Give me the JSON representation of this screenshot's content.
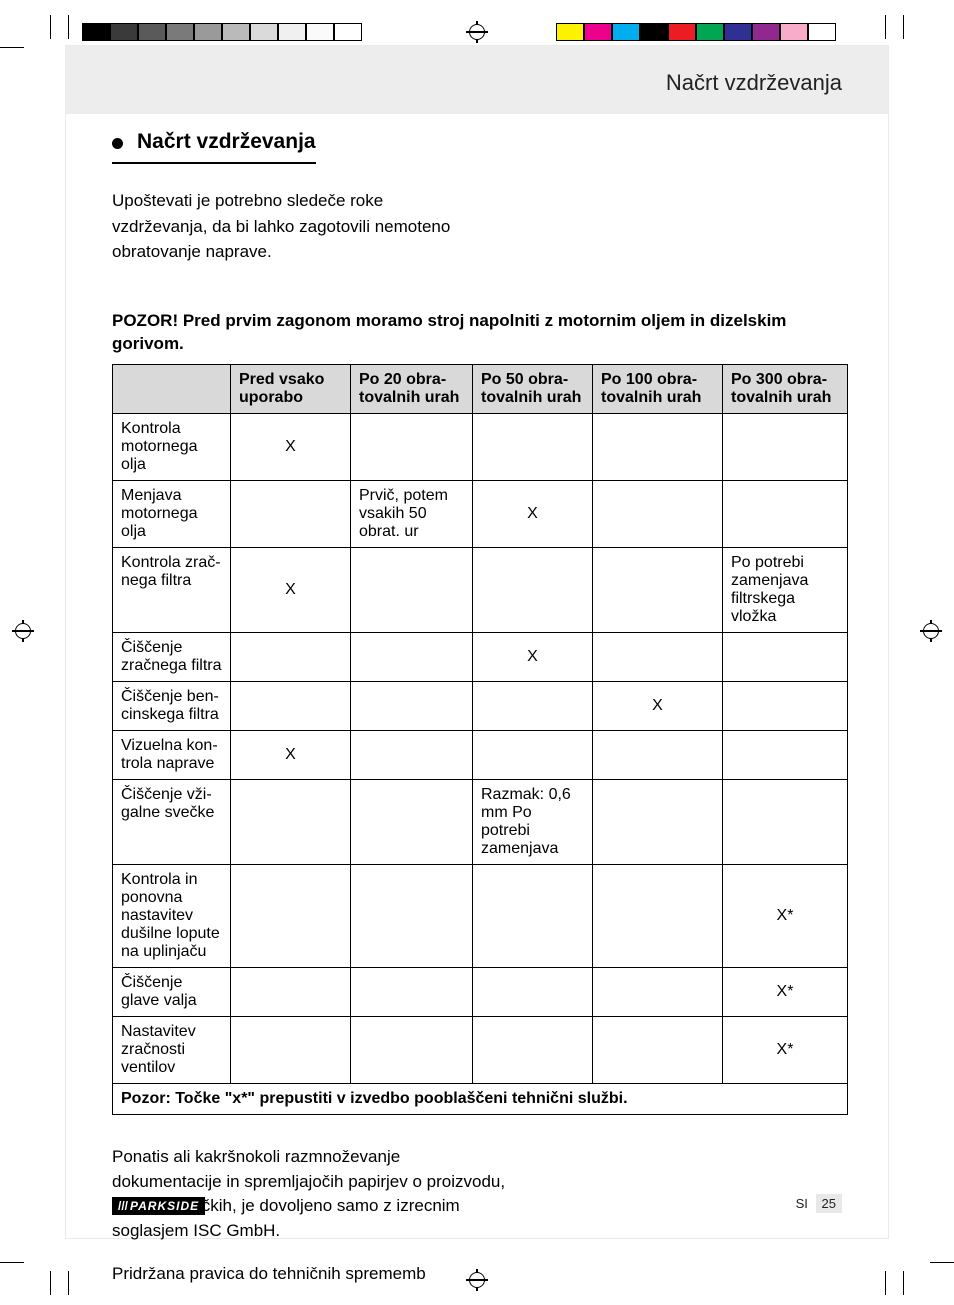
{
  "colors": {
    "header_band": "#ededed",
    "table_header": "#d9d9d9",
    "text": "#000000",
    "page_bg": "#ffffff"
  },
  "print_color_bar_left": [
    "#000000",
    "#3a3a3a",
    "#5a5a5a",
    "#7a7a7a",
    "#9a9a9a",
    "#bababa",
    "#dadada",
    "#f0f0f0",
    "#fafafa",
    "#ffffff"
  ],
  "print_color_bar_right": [
    "#fff200",
    "#ec008c",
    "#00aeef",
    "#000000",
    "#ed1c24",
    "#00a651",
    "#2e3192",
    "#92278f",
    "#f7adc9",
    "#ffffff"
  ],
  "header": {
    "title": "Načrt vzdrževanja"
  },
  "section": {
    "title": "Načrt vzdrževanja",
    "intro": "Upoštevati je potrebno sledeče roke vzdrževanja, da bi lahko zagotovili nemoteno obratovanje naprave.",
    "caution": "POZOR! Pred prvim zagonom moramo stroj napolniti z motornim oljem in dizelskim gorivom."
  },
  "table": {
    "columns": [
      "",
      "Pred vsako uporabo",
      "Po 20 obra­tovalnih urah",
      "Po 50 obra­tovalnih urah",
      "Po 100 obra­tovalnih urah",
      "Po 300 obra­tovalnih urah"
    ],
    "rows": [
      {
        "label": "Kontrola motornega olja",
        "cells": [
          "X",
          "",
          "",
          "",
          ""
        ]
      },
      {
        "label": "Menjava motornega olja",
        "cells": [
          "",
          "Prvič, potem vsakih 50 obrat. ur",
          "X",
          "",
          ""
        ]
      },
      {
        "label": "Kontrola zrač­nega filtra",
        "cells": [
          "X",
          "",
          "",
          "",
          "Po potrebi zamenjava filtrskega vložka"
        ]
      },
      {
        "label": "Čiščenje zrač­nega filtra",
        "cells": [
          "",
          "",
          "X",
          "",
          ""
        ]
      },
      {
        "label": "Čiščenje ben­cinskega filtra",
        "cells": [
          "",
          "",
          "",
          "X",
          ""
        ]
      },
      {
        "label": "Vizuelna kon­trola naprave",
        "cells": [
          "X",
          "",
          "",
          "",
          ""
        ]
      },
      {
        "label": "Čiščenje vži­galne svečke",
        "cells": [
          "",
          "",
          "Razmak: 0,6 mm Po potrebi zamenjava",
          "",
          ""
        ]
      },
      {
        "label": "Kontrola in ponovna nasta­vitev dušilne lopute na upli­njaču",
        "cells": [
          "",
          "",
          "",
          "",
          "X*"
        ]
      },
      {
        "label": "Čiščenje glave valja",
        "cells": [
          "",
          "",
          "",
          "",
          "X*"
        ]
      },
      {
        "label": "Nastavitev zračnosti ventilov",
        "cells": [
          "",
          "",
          "",
          "",
          "X*"
        ]
      }
    ],
    "footnote": "Pozor: Točke \"x*\" prepustiti v izvedbo pooblaščeni tehnični službi."
  },
  "after": {
    "p1": "Ponatis ali kakršnokoli razmnoževanje dokumentacije in spremljajočih papirjev o proizvodu, tudi po izvlečkih, je dovoljeno samo z izrecnim soglasjem ISC GmbH.",
    "p2": "Pridržana pravica do tehničnih sprememb"
  },
  "footer": {
    "brand": "PARKSIDE",
    "lang": "SI",
    "page": "25"
  }
}
